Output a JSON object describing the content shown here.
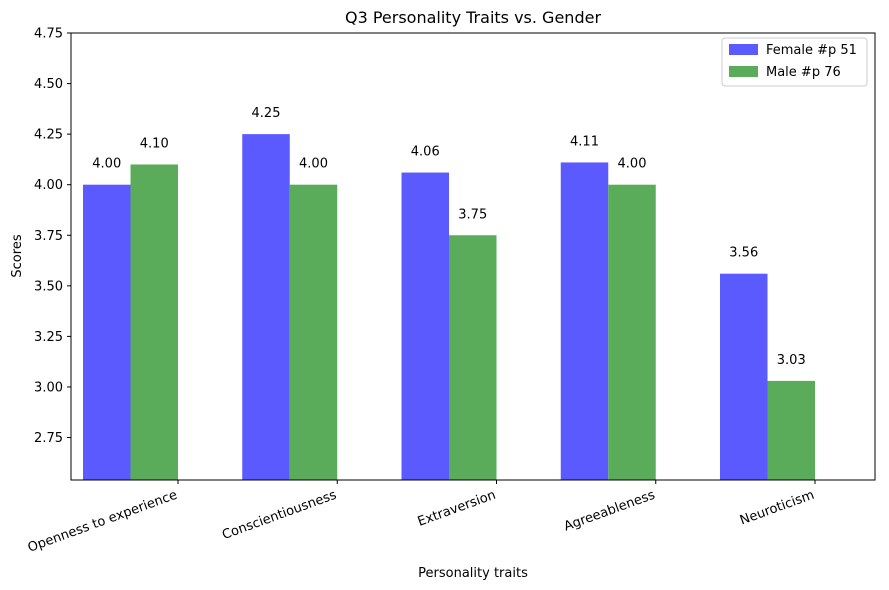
{
  "chart_data": {
    "type": "bar",
    "title": "Q3 Personality Traits vs. Gender",
    "xlabel": "Personality traits",
    "ylabel": "Scores",
    "ylim": [
      2.54,
      4.75
    ],
    "yticks": [
      "2.75",
      "3.00",
      "3.25",
      "3.50",
      "3.75",
      "4.00",
      "4.25",
      "4.50",
      "4.75"
    ],
    "categories": [
      "Openness to experience",
      "Conscientiousness",
      "Extraversion",
      "Agreeableness",
      "Neuroticism"
    ],
    "series": [
      {
        "name": "Female #p 51",
        "color": "#5a5afe",
        "values": [
          4.0,
          4.25,
          4.06,
          4.11,
          3.56
        ],
        "labels": [
          "4.00",
          "4.25",
          "4.06",
          "4.11",
          "3.56"
        ]
      },
      {
        "name": "Male #p 76",
        "color": "#5aac5a",
        "values": [
          4.1,
          4.0,
          3.75,
          4.0,
          3.03
        ],
        "labels": [
          "4.10",
          "4.00",
          "3.75",
          "4.00",
          "3.03"
        ]
      }
    ],
    "grid": false,
    "legend_position": "top-right"
  }
}
